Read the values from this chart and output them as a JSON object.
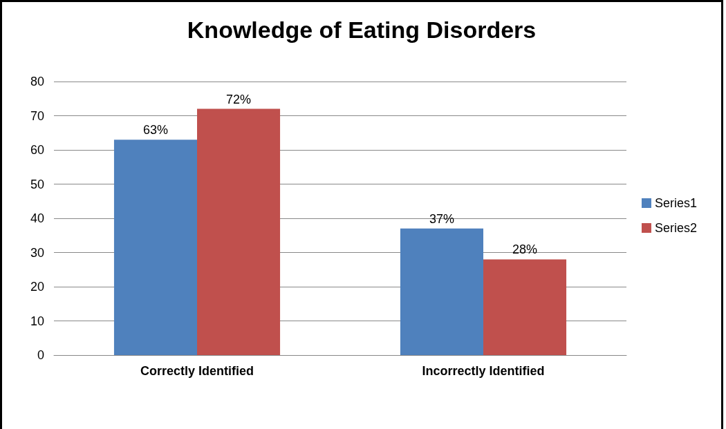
{
  "chart_data": {
    "type": "bar",
    "title": "Knowledge of Eating Disorders",
    "categories": [
      "Correctly Identified",
      "Incorrectly Identified"
    ],
    "series": [
      {
        "name": "Series1",
        "color": "#4f81bd",
        "values": [
          63,
          37
        ],
        "value_labels": [
          "63%",
          "37%"
        ]
      },
      {
        "name": "Series2",
        "color": "#c0504d",
        "values": [
          72,
          28
        ],
        "value_labels": [
          "72%",
          "28%"
        ]
      }
    ],
    "ylim": [
      0,
      80
    ],
    "yticks": [
      0,
      10,
      20,
      30,
      40,
      50,
      60,
      70,
      80
    ],
    "grid": "y",
    "legend": "right"
  }
}
